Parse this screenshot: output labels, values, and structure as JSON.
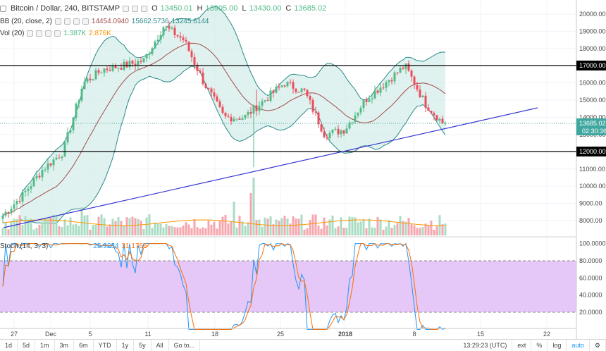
{
  "legend": {
    "symbol": "Bitcoin / Dollar, 240, BITSTAMP",
    "o_label": "O",
    "o": "13450.01",
    "h_label": "H",
    "h": "13905.00",
    "l_label": "L",
    "l": "13430.00",
    "c_label": "C",
    "c": "13685.02",
    "bb_label": "BB (20, close, 2)",
    "bb_values": [
      "14454.0940",
      "15662.5736",
      "13245.6144"
    ],
    "vol_label": "Vol (20)",
    "vol_values": [
      "1.387K",
      "2.876K"
    ],
    "stoch_label": "Stoch (14, 3, 3)",
    "stoch_values": [
      "25.9234",
      "31.1766"
    ]
  },
  "price_axis": [
    "20000.00",
    "19000.00",
    "18000.00",
    "17000.00",
    "16000.00",
    "15000.00",
    "14000.00",
    "13000.00",
    "12000.00",
    "11000.00",
    "10000.00",
    "9000.00",
    "8000.00"
  ],
  "price_tags": {
    "levels": [
      "17000.00",
      "12000.00"
    ],
    "last": "13685.02",
    "countdown": "02:30:36"
  },
  "stoch_axis": [
    "100.0000",
    "80.0000",
    "60.0000",
    "40.0000",
    "20.0000"
  ],
  "date_axis": [
    "27",
    "Dec",
    "5",
    "11",
    "18",
    "25",
    "2018",
    "8",
    "15",
    "22"
  ],
  "toolbar": {
    "ranges": [
      "1d",
      "5d",
      "1m",
      "3m",
      "6m",
      "YTD",
      "1y",
      "5y",
      "All"
    ],
    "goto": "Go to...",
    "time": "13:29:23 (UTC)",
    "ext": "ext",
    "pct": "%",
    "log": "log",
    "auto": "auto"
  },
  "colors": {
    "up": "#53b987",
    "down": "#eb4d5c",
    "bb_mid": "#a34d4d",
    "bb_band": "#2a8a89",
    "bb_fill": "#d3ede8",
    "stoch_k": "#2196f3",
    "stoch_d": "#ff6d00",
    "stoch_bg": "#e5c8f7",
    "trend": "#3636d2",
    "level": "#000000",
    "last": "#3fa7a0"
  },
  "chart_data": {
    "type": "candlestick",
    "title": "Bitcoin / Dollar, 240, BITSTAMP",
    "x": [
      "27",
      "Dec",
      "5",
      "11",
      "18",
      "25",
      "2018",
      "8",
      "15",
      "22"
    ],
    "ylim": [
      7600,
      20600
    ],
    "horizontal_levels": [
      17000,
      12000
    ],
    "last_price": 13685.02,
    "trendline": {
      "from": [
        "27",
        7700
      ],
      "to": [
        "22",
        14600
      ]
    },
    "close_anchors": [
      8300,
      9500,
      11000,
      12000,
      16000,
      16800,
      17000,
      17300,
      19300,
      18500,
      16000,
      14000,
      14000,
      15000,
      16000,
      15500,
      13000,
      13300,
      15000,
      16000,
      17000,
      14800,
      13500
    ],
    "stoch_range": [
      0,
      100
    ],
    "stoch_levels": [
      80,
      20
    ]
  }
}
